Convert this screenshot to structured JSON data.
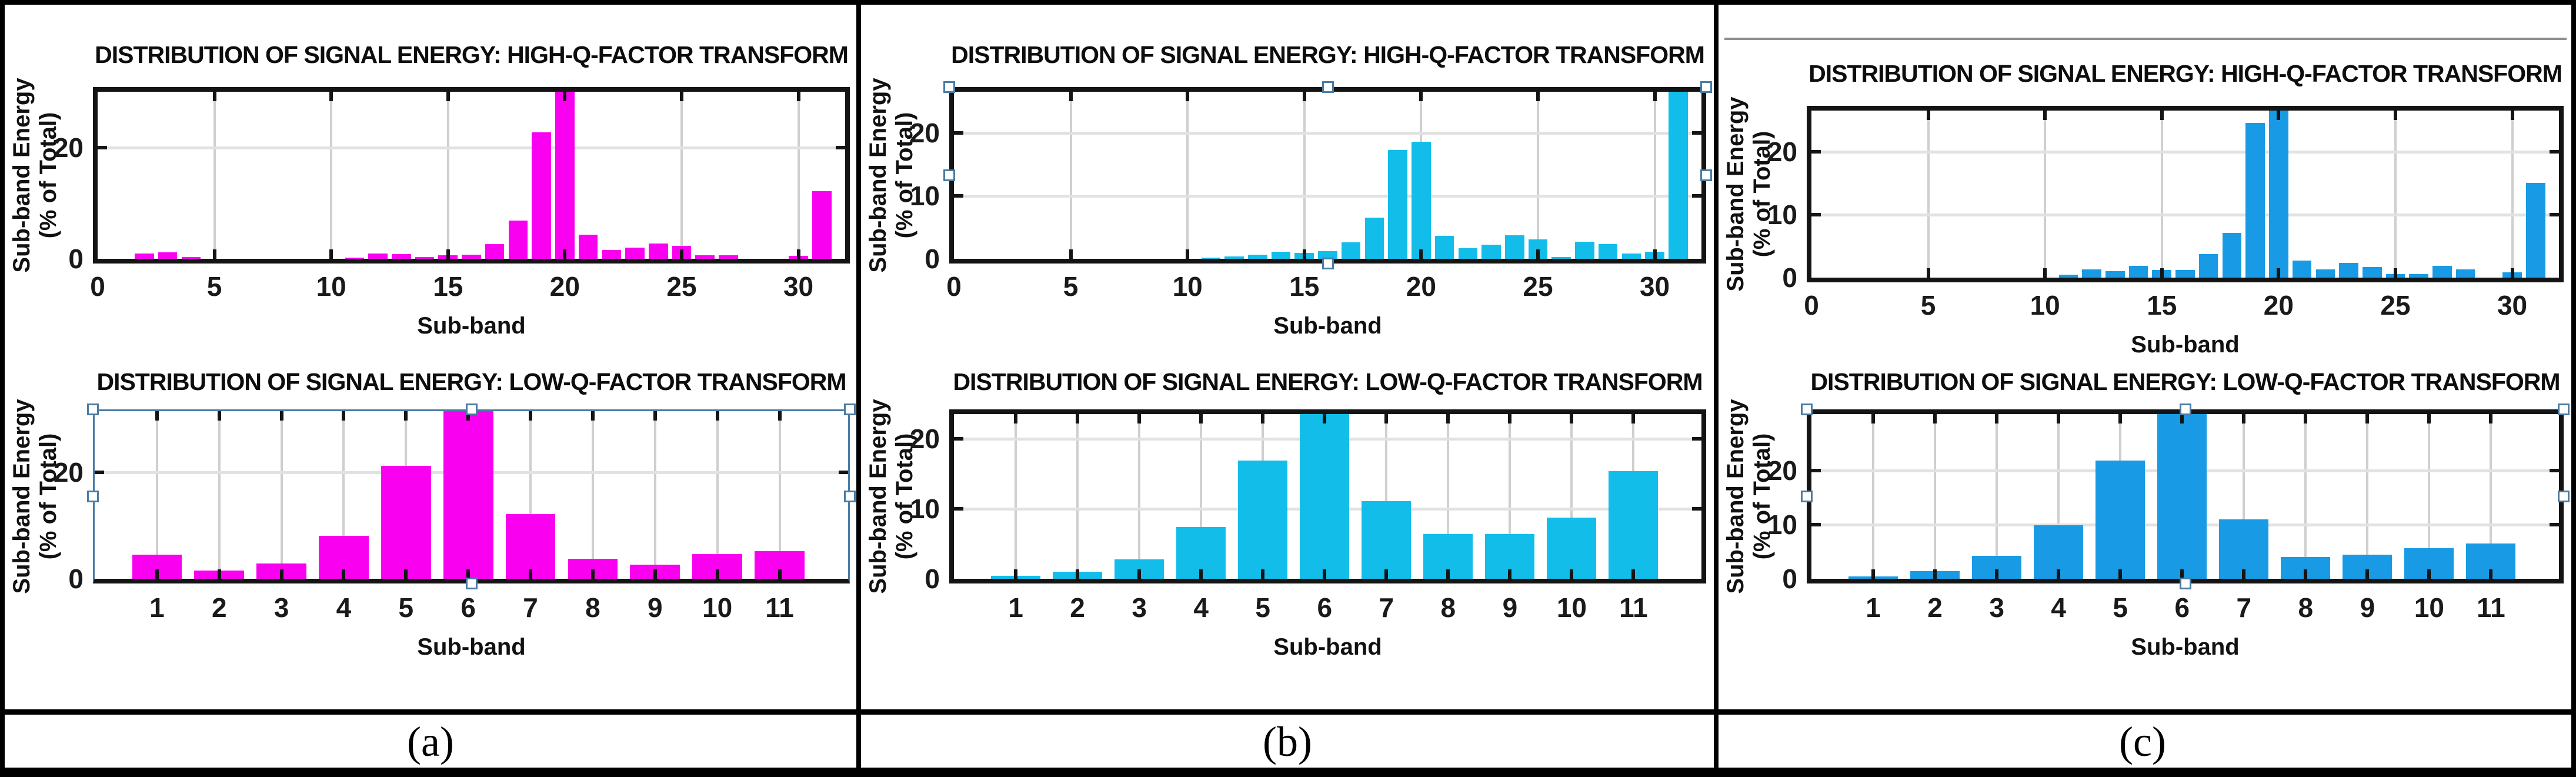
{
  "figure": {
    "type": "three-panel-bar-chart-figure",
    "captions": [
      "(a)",
      "(b)",
      "(c)"
    ],
    "top_rule": {
      "panel": 2,
      "color": "#8f8f8f"
    }
  },
  "shared": {
    "title_high": "DISTRIBUTION OF SIGNAL ENERGY: HIGH-Q-FACTOR TRANSFORM",
    "title_low": "DISTRIBUTION OF SIGNAL ENERGY: LOW-Q-FACTOR TRANSFORM",
    "ylabel_line1": "Sub-band Energy",
    "ylabel_line2": "(% of Total)",
    "xlabel": "Sub-band"
  },
  "colors": {
    "panel_a_bars": "#FA00F0",
    "panel_b_bars": "#12BEE9",
    "panel_c_bars": "#189BE4",
    "axis": "#141414",
    "grid_vertical": "#cfcfcf",
    "grid_horizontal": "#e2e2e2",
    "selection": "#4a7ca4"
  },
  "chart_data": [
    {
      "id": "a-high",
      "panel": 0,
      "slot": "top",
      "type": "bar",
      "title": "DISTRIBUTION OF SIGNAL ENERGY: HIGH-Q-FACTOR TRANSFORM",
      "xlabel": "Sub-band",
      "ylabel": "Sub-band Energy (% of Total)",
      "bar_color": "#FA00F0",
      "xlim": [
        0,
        32
      ],
      "ylim": [
        0,
        30
      ],
      "xticks": [
        0,
        5,
        10,
        15,
        20,
        25,
        30
      ],
      "yticks": [
        0,
        20
      ],
      "grid": true,
      "legend": "none",
      "selection": null,
      "bars": [
        [
          2,
          0.9
        ],
        [
          3,
          1.2
        ],
        [
          4,
          0.3
        ],
        [
          11,
          0.25
        ],
        [
          12,
          0.9
        ],
        [
          13,
          0.8
        ],
        [
          14,
          0.35
        ],
        [
          15,
          0.6
        ],
        [
          16,
          0.75
        ],
        [
          17,
          2.6
        ],
        [
          18,
          6.9
        ],
        [
          19,
          22.7
        ],
        [
          20,
          31
        ],
        [
          21,
          4.3
        ],
        [
          22,
          1.6
        ],
        [
          23,
          2.0
        ],
        [
          24,
          2.7
        ],
        [
          25,
          2.3
        ],
        [
          26,
          0.6
        ],
        [
          27,
          0.6
        ],
        [
          30,
          0.5
        ],
        [
          31,
          12.1
        ]
      ],
      "clipped_bars": [
        20
      ]
    },
    {
      "id": "a-low",
      "panel": 0,
      "slot": "bottom",
      "type": "bar",
      "title": "DISTRIBUTION OF SIGNAL ENERGY: LOW-Q-FACTOR TRANSFORM",
      "xlabel": "Sub-band",
      "ylabel": "Sub-band Energy (% of Total)",
      "bar_color": "#FA00F0",
      "xlim": [
        0,
        12.1
      ],
      "ylim": [
        0,
        31.5
      ],
      "xticks": [
        1,
        2,
        3,
        4,
        5,
        6,
        7,
        8,
        9,
        10,
        11
      ],
      "yticks": [
        0,
        20
      ],
      "grid": true,
      "legend": "none",
      "selection": "outline",
      "bars": [
        [
          1,
          4.5
        ],
        [
          2,
          1.6
        ],
        [
          3,
          2.9
        ],
        [
          4,
          8.1
        ],
        [
          5,
          21.2
        ],
        [
          6,
          33
        ],
        [
          7,
          12.2
        ],
        [
          8,
          3.8
        ],
        [
          9,
          2.7
        ],
        [
          10,
          4.6
        ],
        [
          11,
          5.2
        ]
      ],
      "clipped_bars": [
        6
      ]
    },
    {
      "id": "b-high",
      "panel": 1,
      "slot": "top",
      "type": "bar",
      "title": "DISTRIBUTION OF SIGNAL ENERGY: HIGH-Q-FACTOR TRANSFORM",
      "xlabel": "Sub-band",
      "ylabel": "Sub-band Energy (% of Total)",
      "bar_color": "#12BEE9",
      "xlim": [
        0,
        32
      ],
      "ylim": [
        0,
        26.5
      ],
      "xticks": [
        0,
        5,
        10,
        15,
        20,
        25,
        30
      ],
      "yticks": [
        0,
        10,
        20
      ],
      "grid": true,
      "legend": "none",
      "selection": "handles",
      "bars": [
        [
          11,
          0.2
        ],
        [
          12,
          0.4
        ],
        [
          13,
          0.65
        ],
        [
          14,
          1.15
        ],
        [
          15,
          0.95
        ],
        [
          16,
          1.2
        ],
        [
          17,
          2.6
        ],
        [
          18,
          6.5
        ],
        [
          19,
          17.3
        ],
        [
          20,
          18.6
        ],
        [
          21,
          3.6
        ],
        [
          22,
          1.7
        ],
        [
          23,
          2.2
        ],
        [
          24,
          3.7
        ],
        [
          25,
          3.1
        ],
        [
          26,
          0.3
        ],
        [
          27,
          2.7
        ],
        [
          28,
          2.3
        ],
        [
          29,
          0.8
        ],
        [
          30,
          1.1
        ],
        [
          31,
          28
        ]
      ],
      "clipped_bars": [
        31
      ]
    },
    {
      "id": "b-low",
      "panel": 1,
      "slot": "bottom",
      "type": "bar",
      "title": "DISTRIBUTION OF SIGNAL ENERGY: LOW-Q-FACTOR TRANSFORM",
      "xlabel": "Sub-band",
      "ylabel": "Sub-band Energy (% of Total)",
      "bar_color": "#12BEE9",
      "xlim": [
        0,
        12.1
      ],
      "ylim": [
        0,
        23.5
      ],
      "xticks": [
        1,
        2,
        3,
        4,
        5,
        6,
        7,
        8,
        9,
        10,
        11
      ],
      "yticks": [
        0,
        10,
        20
      ],
      "grid": true,
      "legend": "none",
      "selection": null,
      "bars": [
        [
          1,
          0.45
        ],
        [
          2,
          1.0
        ],
        [
          3,
          2.8
        ],
        [
          4,
          7.4
        ],
        [
          5,
          16.9
        ],
        [
          6,
          25
        ],
        [
          7,
          11.1
        ],
        [
          8,
          6.4
        ],
        [
          9,
          6.4
        ],
        [
          10,
          8.7
        ],
        [
          11,
          15.4
        ]
      ],
      "clipped_bars": [
        6
      ]
    },
    {
      "id": "c-high",
      "panel": 2,
      "slot": "top",
      "type": "bar",
      "title": "DISTRIBUTION OF SIGNAL ENERGY: HIGH-Q-FACTOR TRANSFORM",
      "xlabel": "Sub-band",
      "ylabel": "Sub-band Energy (% of Total)",
      "bar_color": "#189BE4",
      "xlim": [
        0,
        32
      ],
      "ylim": [
        0,
        26.5
      ],
      "xticks": [
        0,
        5,
        10,
        15,
        20,
        25,
        30
      ],
      "yticks": [
        0,
        10,
        20
      ],
      "grid": true,
      "legend": "none",
      "selection": null,
      "bars": [
        [
          11,
          0.5
        ],
        [
          12,
          1.3
        ],
        [
          13,
          1.0
        ],
        [
          14,
          1.9
        ],
        [
          15,
          1.2
        ],
        [
          16,
          1.2
        ],
        [
          17,
          3.7
        ],
        [
          18,
          7.1
        ],
        [
          19,
          24.5
        ],
        [
          20,
          28
        ],
        [
          21,
          2.7
        ],
        [
          22,
          1.3
        ],
        [
          23,
          2.3
        ],
        [
          24,
          1.7
        ],
        [
          25,
          0.6
        ],
        [
          26,
          0.6
        ],
        [
          27,
          1.9
        ],
        [
          28,
          1.3
        ],
        [
          30,
          0.8
        ],
        [
          31,
          15.0
        ]
      ],
      "clipped_bars": [
        20
      ]
    },
    {
      "id": "c-low",
      "panel": 2,
      "slot": "bottom",
      "type": "bar",
      "title": "DISTRIBUTION OF SIGNAL ENERGY: LOW-Q-FACTOR TRANSFORM",
      "xlabel": "Sub-band",
      "ylabel": "Sub-band Energy (% of Total)",
      "bar_color": "#189BE4",
      "xlim": [
        0,
        12.1
      ],
      "ylim": [
        0,
        30.5
      ],
      "xticks": [
        1,
        2,
        3,
        4,
        5,
        6,
        7,
        8,
        9,
        10,
        11
      ],
      "yticks": [
        0,
        10,
        20
      ],
      "grid": true,
      "legend": "none",
      "selection": "handles",
      "bars": [
        [
          1,
          0.4
        ],
        [
          2,
          1.4
        ],
        [
          3,
          4.2
        ],
        [
          4,
          9.9
        ],
        [
          5,
          21.9
        ],
        [
          6,
          32
        ],
        [
          7,
          11.0
        ],
        [
          8,
          4.0
        ],
        [
          9,
          4.5
        ],
        [
          10,
          5.7
        ],
        [
          11,
          6.5
        ]
      ],
      "clipped_bars": [
        6
      ]
    }
  ]
}
